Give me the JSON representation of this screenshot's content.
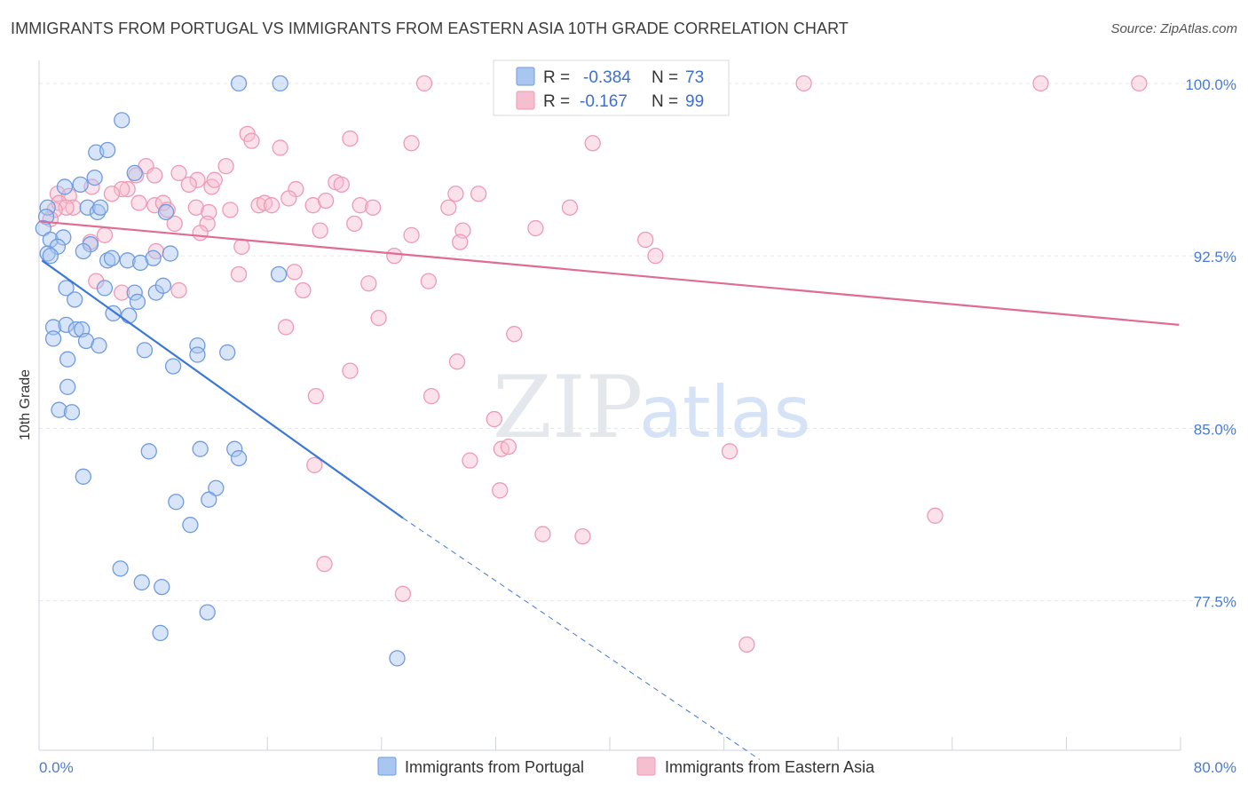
{
  "header": {
    "title": "IMMIGRANTS FROM PORTUGAL VS IMMIGRANTS FROM EASTERN ASIA 10TH GRADE CORRELATION CHART",
    "source": "Source: ZipAtlas.com"
  },
  "watermark": {
    "part1": "ZIP",
    "part2": "atlas"
  },
  "colors": {
    "blue_fill": "#a9c6f0",
    "blue_stroke": "#6f9be0",
    "blue_line": "#3c78d8",
    "pink_fill": "#f6bfd0",
    "pink_stroke": "#ee9ab5",
    "pink_line": "#e06b93"
  },
  "stats": {
    "r_label": "R =",
    "n_label": "N =",
    "blue": {
      "r": "-0.384",
      "n": "73"
    },
    "pink": {
      "r": "-0.167",
      "n": "99"
    }
  },
  "chart_data": {
    "type": "scatter",
    "xlabel": "",
    "ylabel": "10th Grade",
    "xlim": [
      0,
      80
    ],
    "ylim": [
      71.0,
      101.0
    ],
    "x_tick_labels": {
      "left": "0.0%",
      "right": "80.0%"
    },
    "x_minor_ticks": [
      0,
      8,
      16,
      24,
      32,
      40,
      48,
      56,
      64,
      72,
      80
    ],
    "y_ticks": [
      {
        "value": 100.0,
        "label": "100.0%"
      },
      {
        "value": 92.5,
        "label": "92.5%"
      },
      {
        "value": 85.0,
        "label": "85.0%"
      },
      {
        "value": 77.5,
        "label": "77.5%"
      }
    ],
    "grid": true,
    "legend_position": "bottom-center",
    "series": [
      {
        "name": "Immigrants from Portugal",
        "color": "blue",
        "trend": {
          "x_start": 0.2,
          "y_start": 92.3,
          "x_solid_end": 25.5,
          "y_solid_end": 81.1,
          "x_dash_end": 50.5,
          "y_dash_end": 70.6
        },
        "points": [
          [
            14.0,
            100.0
          ],
          [
            16.9,
            100.0
          ],
          [
            5.8,
            98.4
          ],
          [
            4.0,
            97.0
          ],
          [
            4.8,
            97.1
          ],
          [
            6.7,
            96.1
          ],
          [
            2.9,
            95.6
          ],
          [
            1.8,
            95.5
          ],
          [
            3.9,
            95.9
          ],
          [
            0.6,
            94.6
          ],
          [
            0.5,
            94.2
          ],
          [
            3.4,
            94.6
          ],
          [
            4.1,
            94.4
          ],
          [
            4.3,
            94.6
          ],
          [
            8.9,
            94.4
          ],
          [
            0.3,
            93.7
          ],
          [
            0.8,
            93.2
          ],
          [
            1.7,
            93.3
          ],
          [
            1.3,
            92.9
          ],
          [
            3.6,
            93.0
          ],
          [
            0.6,
            92.6
          ],
          [
            0.8,
            92.5
          ],
          [
            3.1,
            92.7
          ],
          [
            4.8,
            92.3
          ],
          [
            5.1,
            92.4
          ],
          [
            6.2,
            92.3
          ],
          [
            7.1,
            92.2
          ],
          [
            8.0,
            92.4
          ],
          [
            9.2,
            92.6
          ],
          [
            16.8,
            91.7
          ],
          [
            1.9,
            91.1
          ],
          [
            4.6,
            91.1
          ],
          [
            6.7,
            90.9
          ],
          [
            8.2,
            90.9
          ],
          [
            8.7,
            91.2
          ],
          [
            2.5,
            90.6
          ],
          [
            6.9,
            90.5
          ],
          [
            5.2,
            90.0
          ],
          [
            6.3,
            89.9
          ],
          [
            1.0,
            89.4
          ],
          [
            1.9,
            89.5
          ],
          [
            2.6,
            89.3
          ],
          [
            3.0,
            89.3
          ],
          [
            1.0,
            88.9
          ],
          [
            3.3,
            88.8
          ],
          [
            4.2,
            88.6
          ],
          [
            7.4,
            88.4
          ],
          [
            11.1,
            88.6
          ],
          [
            11.1,
            88.2
          ],
          [
            13.2,
            88.3
          ],
          [
            2.0,
            88.0
          ],
          [
            9.4,
            87.7
          ],
          [
            2.0,
            86.8
          ],
          [
            1.4,
            85.8
          ],
          [
            2.3,
            85.7
          ],
          [
            7.7,
            84.0
          ],
          [
            11.3,
            84.1
          ],
          [
            13.7,
            84.1
          ],
          [
            14.0,
            83.7
          ],
          [
            3.1,
            82.9
          ],
          [
            12.4,
            82.4
          ],
          [
            9.6,
            81.8
          ],
          [
            11.9,
            81.9
          ],
          [
            10.6,
            80.8
          ],
          [
            5.7,
            78.9
          ],
          [
            7.2,
            78.3
          ],
          [
            8.6,
            78.1
          ],
          [
            11.8,
            77.0
          ],
          [
            8.5,
            76.1
          ],
          [
            25.1,
            75.0
          ]
        ]
      },
      {
        "name": "Immigrants from Eastern Asia",
        "color": "pink",
        "trend": {
          "x_start": 0.0,
          "y_start": 94.0,
          "x_end": 79.9,
          "y_end": 89.5
        },
        "points": [
          [
            27.0,
            100.0
          ],
          [
            37.7,
            100.0
          ],
          [
            53.6,
            100.0
          ],
          [
            70.2,
            100.0
          ],
          [
            77.1,
            100.0
          ],
          [
            14.6,
            97.8
          ],
          [
            14.9,
            97.5
          ],
          [
            16.9,
            97.2
          ],
          [
            21.8,
            97.6
          ],
          [
            26.1,
            97.4
          ],
          [
            38.8,
            97.4
          ],
          [
            7.5,
            96.4
          ],
          [
            8.1,
            96.0
          ],
          [
            9.8,
            96.1
          ],
          [
            6.8,
            96.0
          ],
          [
            13.1,
            96.4
          ],
          [
            11.1,
            95.8
          ],
          [
            12.1,
            95.5
          ],
          [
            18.0,
            95.4
          ],
          [
            10.5,
            95.6
          ],
          [
            12.3,
            95.8
          ],
          [
            20.8,
            95.7
          ],
          [
            21.2,
            95.6
          ],
          [
            6.2,
            95.4
          ],
          [
            5.8,
            95.4
          ],
          [
            3.7,
            95.5
          ],
          [
            1.3,
            95.2
          ],
          [
            2.1,
            95.1
          ],
          [
            5.1,
            95.2
          ],
          [
            17.5,
            95.0
          ],
          [
            22.5,
            94.7
          ],
          [
            2.4,
            94.6
          ],
          [
            1.4,
            94.8
          ],
          [
            1.9,
            94.6
          ],
          [
            1.1,
            94.5
          ],
          [
            7.0,
            94.8
          ],
          [
            8.1,
            94.7
          ],
          [
            8.7,
            94.8
          ],
          [
            9.0,
            94.5
          ],
          [
            11.0,
            94.6
          ],
          [
            11.9,
            94.4
          ],
          [
            13.4,
            94.5
          ],
          [
            15.4,
            94.7
          ],
          [
            15.8,
            94.8
          ],
          [
            16.3,
            94.7
          ],
          [
            19.2,
            94.7
          ],
          [
            20.1,
            94.9
          ],
          [
            23.4,
            94.6
          ],
          [
            28.7,
            94.6
          ],
          [
            29.2,
            95.2
          ],
          [
            30.8,
            95.2
          ],
          [
            37.2,
            94.6
          ],
          [
            0.8,
            94.1
          ],
          [
            9.5,
            93.9
          ],
          [
            11.8,
            93.9
          ],
          [
            22.1,
            93.9
          ],
          [
            11.3,
            93.5
          ],
          [
            19.7,
            93.6
          ],
          [
            26.1,
            93.4
          ],
          [
            29.7,
            93.6
          ],
          [
            34.8,
            93.7
          ],
          [
            4.6,
            93.4
          ],
          [
            3.6,
            93.1
          ],
          [
            14.2,
            92.9
          ],
          [
            29.5,
            93.1
          ],
          [
            42.5,
            93.2
          ],
          [
            43.2,
            92.5
          ],
          [
            8.2,
            92.7
          ],
          [
            24.9,
            92.5
          ],
          [
            14.0,
            91.7
          ],
          [
            17.9,
            91.8
          ],
          [
            4.0,
            91.4
          ],
          [
            23.1,
            91.3
          ],
          [
            27.3,
            91.4
          ],
          [
            18.5,
            91.0
          ],
          [
            9.8,
            91.0
          ],
          [
            5.8,
            90.9
          ],
          [
            23.8,
            89.8
          ],
          [
            17.3,
            89.4
          ],
          [
            33.3,
            89.1
          ],
          [
            29.3,
            87.9
          ],
          [
            21.8,
            87.5
          ],
          [
            19.4,
            86.4
          ],
          [
            27.5,
            86.4
          ],
          [
            31.9,
            85.4
          ],
          [
            32.4,
            84.1
          ],
          [
            32.9,
            84.2
          ],
          [
            48.4,
            84.0
          ],
          [
            30.2,
            83.6
          ],
          [
            19.3,
            83.4
          ],
          [
            32.3,
            82.3
          ],
          [
            62.8,
            81.2
          ],
          [
            38.1,
            80.3
          ],
          [
            35.3,
            80.4
          ],
          [
            20.0,
            79.1
          ],
          [
            25.5,
            77.8
          ],
          [
            49.6,
            75.6
          ]
        ]
      }
    ]
  }
}
